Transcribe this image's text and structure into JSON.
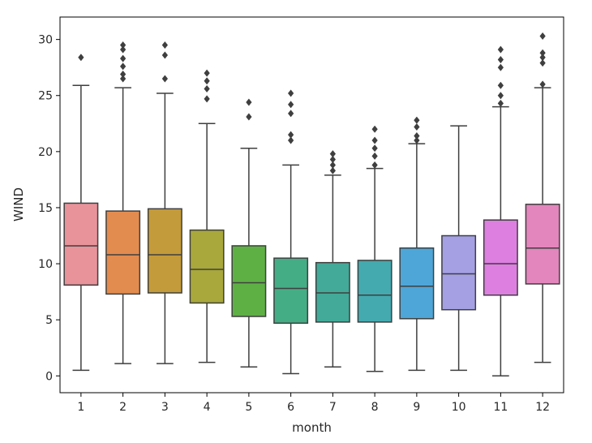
{
  "chart_data": {
    "type": "box",
    "xlabel": "month",
    "ylabel": "WIND",
    "ylim": [
      -1.5,
      32
    ],
    "yticks": [
      0,
      5,
      10,
      15,
      20,
      25,
      30
    ],
    "grid": false,
    "categories": [
      "1",
      "2",
      "3",
      "4",
      "5",
      "6",
      "7",
      "8",
      "9",
      "10",
      "11",
      "12"
    ],
    "boxes": [
      {
        "category": "1",
        "whisker_low": 0.5,
        "q1": 8.1,
        "median": 11.6,
        "q3": 15.4,
        "whisker_high": 25.9,
        "color": "#e8939a",
        "outliers": [
          28.4
        ]
      },
      {
        "category": "2",
        "whisker_low": 1.1,
        "q1": 7.3,
        "median": 10.8,
        "q3": 14.7,
        "whisker_high": 25.7,
        "color": "#e38c4f",
        "outliers": [
          26.5,
          26.9,
          27.6,
          28.3,
          29.1,
          29.5
        ]
      },
      {
        "category": "3",
        "whisker_low": 1.1,
        "q1": 7.4,
        "median": 10.8,
        "q3": 14.9,
        "whisker_high": 25.2,
        "color": "#c49b3a",
        "outliers": [
          26.5,
          28.6,
          29.5
        ]
      },
      {
        "category": "4",
        "whisker_low": 1.2,
        "q1": 6.5,
        "median": 9.5,
        "q3": 13.0,
        "whisker_high": 22.5,
        "color": "#a8a83c",
        "outliers": [
          24.7,
          25.6,
          26.3,
          27.0
        ]
      },
      {
        "category": "5",
        "whisker_low": 0.8,
        "q1": 5.3,
        "median": 8.3,
        "q3": 11.6,
        "whisker_high": 20.3,
        "color": "#5eb045",
        "outliers": [
          23.1,
          24.4
        ]
      },
      {
        "category": "6",
        "whisker_low": 0.2,
        "q1": 4.7,
        "median": 7.8,
        "q3": 10.5,
        "whisker_high": 18.8,
        "color": "#45ad85",
        "outliers": [
          21.0,
          21.5,
          23.4,
          24.2,
          25.2
        ]
      },
      {
        "category": "7",
        "whisker_low": 0.8,
        "q1": 4.8,
        "median": 7.4,
        "q3": 10.1,
        "whisker_high": 17.9,
        "color": "#43aa99",
        "outliers": [
          18.3,
          18.8,
          19.3,
          19.8
        ]
      },
      {
        "category": "8",
        "whisker_low": 0.4,
        "q1": 4.8,
        "median": 7.2,
        "q3": 10.3,
        "whisker_high": 18.5,
        "color": "#44aaaf",
        "outliers": [
          18.8,
          19.6,
          20.3,
          21.0,
          22.0
        ]
      },
      {
        "category": "9",
        "whisker_low": 0.5,
        "q1": 5.1,
        "median": 8.0,
        "q3": 11.4,
        "whisker_high": 20.7,
        "color": "#4ea6d8",
        "outliers": [
          21.0,
          21.4,
          22.2,
          22.8
        ]
      },
      {
        "category": "10",
        "whisker_low": 0.5,
        "q1": 5.9,
        "median": 9.1,
        "q3": 12.5,
        "whisker_high": 22.3,
        "color": "#a5a0e4",
        "outliers": []
      },
      {
        "category": "11",
        "whisker_low": 0.0,
        "q1": 7.2,
        "median": 10.0,
        "q3": 13.9,
        "whisker_high": 24.0,
        "color": "#dc7fe0",
        "outliers": [
          24.3,
          25.0,
          25.9,
          27.5,
          28.2,
          29.1
        ]
      },
      {
        "category": "12",
        "whisker_low": 1.2,
        "q1": 8.2,
        "median": 11.4,
        "q3": 15.3,
        "whisker_high": 25.7,
        "color": "#e386bd",
        "outliers": [
          26.0,
          27.9,
          28.4,
          28.8,
          30.3
        ]
      }
    ],
    "line_color": "#3f3f3f"
  }
}
